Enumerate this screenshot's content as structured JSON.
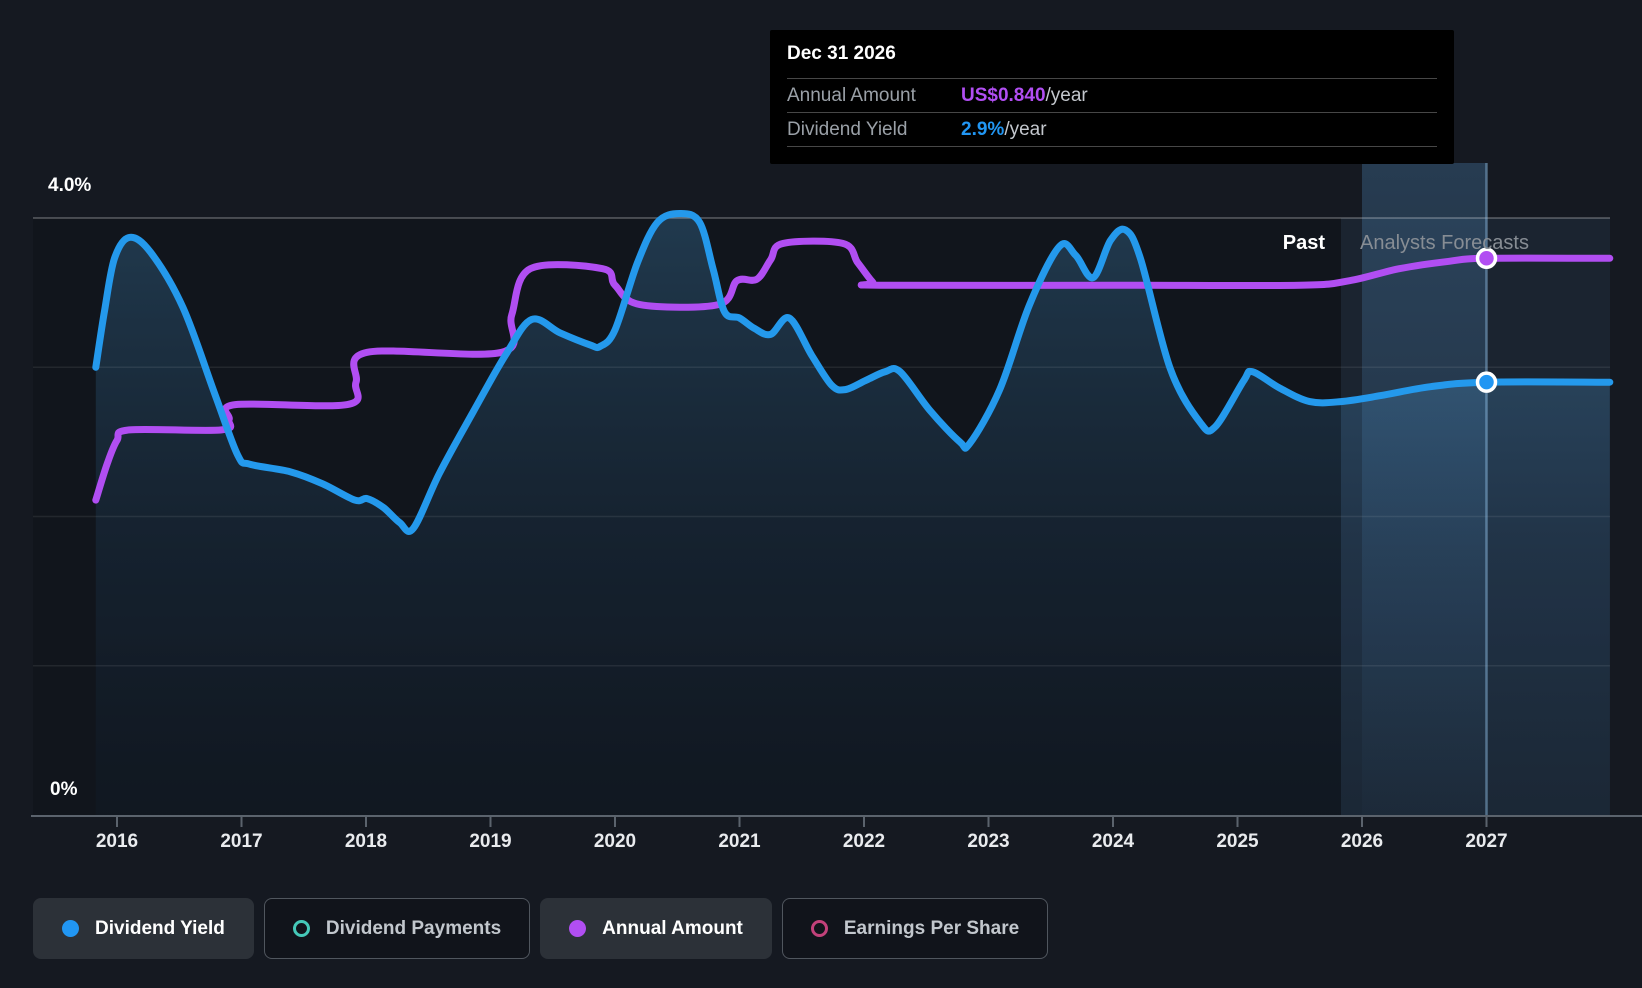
{
  "tooltip": {
    "date": "Dec 31 2026",
    "rows": [
      {
        "label": "Annual Amount",
        "value": "US$0.840",
        "suffix": "/year",
        "color": "#b14ef2"
      },
      {
        "label": "Dividend Yield",
        "value": "2.9%",
        "suffix": "/year",
        "color": "#2196f3"
      }
    ]
  },
  "annotations": {
    "past": "Past",
    "forecast": "Analysts Forecasts"
  },
  "axis": {
    "y_top_label": "4.0%",
    "y_bottom_label": "0%",
    "years": [
      "2016",
      "2017",
      "2018",
      "2019",
      "2020",
      "2021",
      "2022",
      "2023",
      "2024",
      "2025",
      "2026",
      "2027"
    ]
  },
  "legend": [
    {
      "label": "Dividend Yield",
      "icon": "filled-circle",
      "color": "#2196f3",
      "active": true
    },
    {
      "label": "Dividend Payments",
      "icon": "ring",
      "color": "#45c8b8",
      "active": false
    },
    {
      "label": "Annual Amount",
      "icon": "filled-circle",
      "color": "#b14ef2",
      "active": true
    },
    {
      "label": "Earnings Per Share",
      "icon": "ring",
      "color": "#c2417a",
      "active": false
    }
  ],
  "colors": {
    "yield_blue": "#2196f3",
    "amount_purple": "#b14ef2",
    "payments_teal": "#45c8b8",
    "eps_pink": "#c2417a",
    "background": "#151921",
    "tooltip_bg": "#000000"
  },
  "chart_data": {
    "type": "line",
    "title": "Dividend yield and payments history with analysts forecasts",
    "x_range": [
      2015.83,
      2027.99
    ],
    "y_axis": {
      "min": 0,
      "max": 4.0,
      "unit": "%",
      "top_label": "4.0%",
      "bottom_label": "0%",
      "gridline_values": [
        4,
        3,
        2,
        1
      ]
    },
    "x_ticks": [
      2016,
      2017,
      2018,
      2019,
      2020,
      2021,
      2022,
      2023,
      2024,
      2025,
      2026,
      2027
    ],
    "forecast_boundary_year": 2025.83,
    "legend_position": "bottom",
    "hover": {
      "band_start_year": 2026.0,
      "band_end_year": 2027.0,
      "marker_year": 2027.0,
      "yield_pct": 2.9,
      "amount_pct": 3.73,
      "amount_label": "US$0.840/year"
    },
    "series": [
      {
        "name": "Dividend Yield",
        "color": "#2196f3",
        "style": "line+area",
        "unit": "%",
        "points": [
          [
            2015.83,
            3.0
          ],
          [
            2015.9,
            3.38
          ],
          [
            2015.98,
            3.73
          ],
          [
            2016.1,
            3.87
          ],
          [
            2016.27,
            3.77
          ],
          [
            2016.53,
            3.4
          ],
          [
            2016.79,
            2.81
          ],
          [
            2016.97,
            2.41
          ],
          [
            2017.07,
            2.35
          ],
          [
            2017.39,
            2.3
          ],
          [
            2017.65,
            2.22
          ],
          [
            2017.91,
            2.11
          ],
          [
            2018.01,
            2.12
          ],
          [
            2018.14,
            2.06
          ],
          [
            2018.27,
            1.96
          ],
          [
            2018.38,
            1.92
          ],
          [
            2018.59,
            2.29
          ],
          [
            2018.86,
            2.7
          ],
          [
            2019.12,
            3.08
          ],
          [
            2019.33,
            3.32
          ],
          [
            2019.56,
            3.23
          ],
          [
            2019.8,
            3.15
          ],
          [
            2019.88,
            3.14
          ],
          [
            2020.0,
            3.25
          ],
          [
            2020.18,
            3.7
          ],
          [
            2020.34,
            3.97
          ],
          [
            2020.52,
            4.03
          ],
          [
            2020.68,
            3.97
          ],
          [
            2020.79,
            3.65
          ],
          [
            2020.88,
            3.37
          ],
          [
            2021.0,
            3.33
          ],
          [
            2021.12,
            3.26
          ],
          [
            2021.25,
            3.22
          ],
          [
            2021.4,
            3.33
          ],
          [
            2021.58,
            3.08
          ],
          [
            2021.74,
            2.88
          ],
          [
            2021.85,
            2.85
          ],
          [
            2022.01,
            2.91
          ],
          [
            2022.17,
            2.97
          ],
          [
            2022.29,
            2.97
          ],
          [
            2022.53,
            2.71
          ],
          [
            2022.77,
            2.5
          ],
          [
            2022.85,
            2.49
          ],
          [
            2023.09,
            2.85
          ],
          [
            2023.33,
            3.42
          ],
          [
            2023.57,
            3.81
          ],
          [
            2023.7,
            3.75
          ],
          [
            2023.84,
            3.6
          ],
          [
            2023.98,
            3.85
          ],
          [
            2024.1,
            3.92
          ],
          [
            2024.22,
            3.73
          ],
          [
            2024.46,
            2.99
          ],
          [
            2024.7,
            2.63
          ],
          [
            2024.82,
            2.6
          ],
          [
            2025.05,
            2.91
          ],
          [
            2025.12,
            2.97
          ],
          [
            2025.34,
            2.86
          ],
          [
            2025.58,
            2.77
          ],
          [
            2025.83,
            2.77
          ],
          [
            2026.15,
            2.81
          ],
          [
            2026.55,
            2.87
          ],
          [
            2027.0,
            2.9
          ],
          [
            2027.99,
            2.9
          ]
        ]
      },
      {
        "name": "Annual Amount",
        "color": "#b14ef2",
        "style": "line",
        "unit": "% (plotted on yield axis)",
        "value_at_marker": "US$0.840/year",
        "points": [
          [
            2015.83,
            2.11
          ],
          [
            2015.92,
            2.35
          ],
          [
            2016.0,
            2.51
          ],
          [
            2016.1,
            2.58
          ],
          [
            2016.84,
            2.58
          ],
          [
            2016.9,
            2.65
          ],
          [
            2016.95,
            2.75
          ],
          [
            2017.85,
            2.75
          ],
          [
            2017.92,
            2.9
          ],
          [
            2018.01,
            3.1
          ],
          [
            2019.09,
            3.1
          ],
          [
            2019.17,
            3.35
          ],
          [
            2019.32,
            3.66
          ],
          [
            2019.9,
            3.66
          ],
          [
            2020.0,
            3.55
          ],
          [
            2020.2,
            3.42
          ],
          [
            2020.83,
            3.42
          ],
          [
            2020.98,
            3.58
          ],
          [
            2021.14,
            3.59
          ],
          [
            2021.25,
            3.72
          ],
          [
            2021.35,
            3.83
          ],
          [
            2021.83,
            3.83
          ],
          [
            2021.95,
            3.7
          ],
          [
            2022.07,
            3.57
          ],
          [
            2022.13,
            3.55
          ],
          [
            2024.0,
            3.55
          ],
          [
            2025.5,
            3.55
          ],
          [
            2025.9,
            3.58
          ],
          [
            2026.3,
            3.66
          ],
          [
            2026.7,
            3.71
          ],
          [
            2027.0,
            3.73
          ],
          [
            2027.99,
            3.73
          ]
        ]
      }
    ]
  }
}
